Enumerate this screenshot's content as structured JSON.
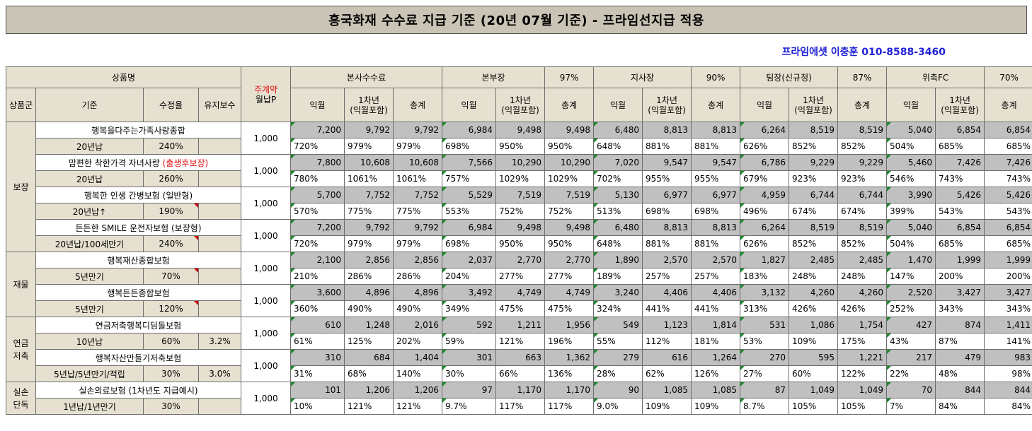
{
  "title": "흥국화재 수수료 지급 기준 (20년 07월 기준) - 프라임선지급 적용",
  "contact": "프라임에셋 이충훈 010-8588-3460",
  "header": {
    "product_name": "상품명",
    "monthly_label": "주계약",
    "monthly_sub": "월납P",
    "hq": "본사수수료",
    "bonbu": "본부장",
    "bonbu_pct": "97%",
    "jisa": "지사장",
    "jisa_pct": "90%",
    "team": "팀장(신규정)",
    "team_pct": "87%",
    "fc": "위촉FC",
    "fc_pct": "70%",
    "col_group": "상품군",
    "col_basis": "기준",
    "col_rate": "수정율",
    "col_maint": "유지보수",
    "c_month": "익월",
    "c_year": "1차년\n(익월포함)",
    "c_total": "총계"
  },
  "groups": [
    {
      "name": "보장",
      "products": [
        {
          "name": "행복을다주는가족사랑종합",
          "name_red": "",
          "basis": "20년납",
          "rate": "240%",
          "maint": "",
          "flag": false,
          "premium": "1,000",
          "amounts": [
            "7,200",
            "9,792",
            "9,792",
            "6,984",
            "9,498",
            "9,498",
            "6,480",
            "8,813",
            "8,813",
            "6,264",
            "8,519",
            "8,519",
            "5,040",
            "6,854",
            "6,854"
          ],
          "pcts": [
            "720%",
            "979%",
            "979%",
            "698%",
            "950%",
            "950%",
            "648%",
            "881%",
            "881%",
            "626%",
            "852%",
            "852%",
            "504%",
            "685%",
            "685%"
          ]
        },
        {
          "name": "맘편한 착한가격 자녀사랑 ",
          "name_red": "(출생후보장)",
          "basis": "20년납",
          "rate": "260%",
          "maint": "",
          "flag": false,
          "premium": "1,000",
          "amounts": [
            "7,800",
            "10,608",
            "10,608",
            "7,566",
            "10,290",
            "10,290",
            "7,020",
            "9,547",
            "9,547",
            "6,786",
            "9,229",
            "9,229",
            "5,460",
            "7,426",
            "7,426"
          ],
          "pcts": [
            "780%",
            "1061%",
            "1061%",
            "757%",
            "1029%",
            "1029%",
            "702%",
            "955%",
            "955%",
            "679%",
            "923%",
            "923%",
            "546%",
            "743%",
            "743%"
          ]
        },
        {
          "name": "행복한 인생 간병보험 (일반형)",
          "name_red": "",
          "basis": "20년납↑",
          "rate": "190%",
          "maint": "",
          "flag": true,
          "premium": "1,000",
          "amounts": [
            "5,700",
            "7,752",
            "7,752",
            "5,529",
            "7,519",
            "7,519",
            "5,130",
            "6,977",
            "6,977",
            "4,959",
            "6,744",
            "6,744",
            "3,990",
            "5,426",
            "5,426"
          ],
          "pcts": [
            "570%",
            "775%",
            "775%",
            "553%",
            "752%",
            "752%",
            "513%",
            "698%",
            "698%",
            "496%",
            "674%",
            "674%",
            "399%",
            "543%",
            "543%"
          ]
        },
        {
          "name": "든든한 SMILE 운전자보험 (보장형)",
          "name_red": "",
          "basis": "20년납/100세만기",
          "rate": "240%",
          "maint": "",
          "flag": true,
          "premium": "1,000",
          "amounts": [
            "7,200",
            "9,792",
            "9,792",
            "6,984",
            "9,498",
            "9,498",
            "6,480",
            "8,813",
            "8,813",
            "6,264",
            "8,519",
            "8,519",
            "5,040",
            "6,854",
            "6,854"
          ],
          "pcts": [
            "720%",
            "979%",
            "979%",
            "698%",
            "950%",
            "950%",
            "648%",
            "881%",
            "881%",
            "626%",
            "852%",
            "852%",
            "504%",
            "685%",
            "685%"
          ]
        }
      ]
    },
    {
      "name": "재물",
      "products": [
        {
          "name": "행복재산종합보험",
          "name_red": "",
          "basis": "5년만기",
          "rate": "70%",
          "maint": "",
          "flag": true,
          "premium": "1,000",
          "amounts": [
            "2,100",
            "2,856",
            "2,856",
            "2,037",
            "2,770",
            "2,770",
            "1,890",
            "2,570",
            "2,570",
            "1,827",
            "2,485",
            "2,485",
            "1,470",
            "1,999",
            "1,999"
          ],
          "pcts": [
            "210%",
            "286%",
            "286%",
            "204%",
            "277%",
            "277%",
            "189%",
            "257%",
            "257%",
            "183%",
            "248%",
            "248%",
            "147%",
            "200%",
            "200%"
          ]
        },
        {
          "name": "행복든든종합보험",
          "name_red": "",
          "basis": "5년만기",
          "rate": "120%",
          "maint": "",
          "flag": true,
          "premium": "1,000",
          "amounts": [
            "3,600",
            "4,896",
            "4,896",
            "3,492",
            "4,749",
            "4,749",
            "3,240",
            "4,406",
            "4,406",
            "3,132",
            "4,260",
            "4,260",
            "2,520",
            "3,427",
            "3,427"
          ],
          "pcts": [
            "360%",
            "490%",
            "490%",
            "349%",
            "475%",
            "475%",
            "324%",
            "441%",
            "441%",
            "313%",
            "426%",
            "426%",
            "252%",
            "343%",
            "343%"
          ]
        }
      ]
    },
    {
      "name": "연금\n저축",
      "products": [
        {
          "name": "연금저축행복디딤돌보험",
          "name_red": "",
          "basis": "10년납",
          "rate": "60%",
          "maint": "3.2%",
          "flag": false,
          "premium": "1,000",
          "amounts": [
            "610",
            "1,248",
            "2,016",
            "592",
            "1,211",
            "1,956",
            "549",
            "1,123",
            "1,814",
            "531",
            "1,086",
            "1,754",
            "427",
            "874",
            "1,411"
          ],
          "pcts": [
            "61%",
            "125%",
            "202%",
            "59%",
            "121%",
            "196%",
            "55%",
            "112%",
            "181%",
            "53%",
            "109%",
            "175%",
            "43%",
            "87%",
            "141%"
          ]
        },
        {
          "name": "행복자산만들기저축보험",
          "name_red": "",
          "basis": "5년납/5년만기/적립",
          "rate": "30%",
          "maint": "3.0%",
          "flag": false,
          "premium": "1,000",
          "amounts": [
            "310",
            "684",
            "1,404",
            "301",
            "663",
            "1,362",
            "279",
            "616",
            "1,264",
            "270",
            "595",
            "1,221",
            "217",
            "479",
            "983"
          ],
          "pcts": [
            "31%",
            "68%",
            "140%",
            "30%",
            "66%",
            "136%",
            "28%",
            "62%",
            "126%",
            "27%",
            "60%",
            "122%",
            "22%",
            "48%",
            "98%"
          ]
        }
      ]
    },
    {
      "name": "실손\n단독",
      "products": [
        {
          "name": "실손의료보험 (1차년도 지급예시)",
          "name_red": "",
          "basis": "1년납/1년만기",
          "rate": "30%",
          "maint": "",
          "flag": false,
          "premium": "1,000",
          "amounts": [
            "101",
            "1,206",
            "1,206",
            "97",
            "1,170",
            "1,170",
            "90",
            "1,085",
            "1,085",
            "87",
            "1,049",
            "1,049",
            "70",
            "844",
            "844"
          ],
          "pcts": [
            "10%",
            "121%",
            "121%",
            "9.7%",
            "117%",
            "117%",
            "9.0%",
            "109%",
            "109%",
            "8.7%",
            "105%",
            "105%",
            "7%",
            "84%",
            "84%"
          ]
        }
      ]
    }
  ]
}
